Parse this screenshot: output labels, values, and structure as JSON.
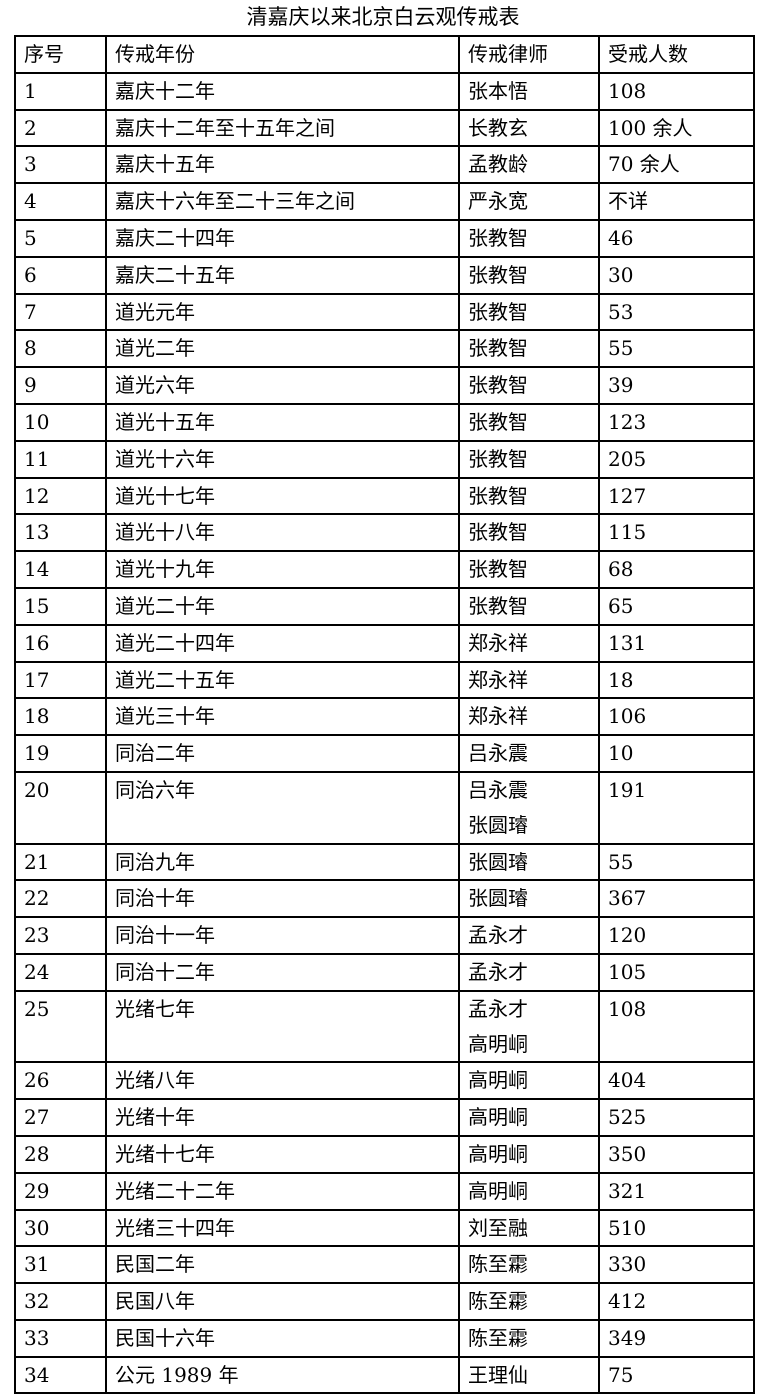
{
  "title": "清嘉庆以来北京白云观传戒表",
  "headers": [
    "序号",
    "传戒年份",
    "传戒律师",
    "受戒人数"
  ],
  "rows": [
    {
      "no": "1",
      "year": "嘉庆十二年",
      "masters": [
        "张本悟"
      ],
      "count": "108"
    },
    {
      "no": "2",
      "year": "嘉庆十二年至十五年之间",
      "masters": [
        "长教玄"
      ],
      "count": "100 余人"
    },
    {
      "no": "3",
      "year": "嘉庆十五年",
      "masters": [
        "孟教龄"
      ],
      "count": "70 余人"
    },
    {
      "no": "4",
      "year": "嘉庆十六年至二十三年之间",
      "masters": [
        "严永宽"
      ],
      "count": "不详"
    },
    {
      "no": "5",
      "year": "嘉庆二十四年",
      "masters": [
        "张教智"
      ],
      "count": "46"
    },
    {
      "no": "6",
      "year": "嘉庆二十五年",
      "masters": [
        "张教智"
      ],
      "count": "30"
    },
    {
      "no": "7",
      "year": "道光元年",
      "masters": [
        "张教智"
      ],
      "count": "53"
    },
    {
      "no": "8",
      "year": "道光二年",
      "masters": [
        "张教智"
      ],
      "count": "55"
    },
    {
      "no": "9",
      "year": "道光六年",
      "masters": [
        "张教智"
      ],
      "count": "39"
    },
    {
      "no": "10",
      "year": "道光十五年",
      "masters": [
        "张教智"
      ],
      "count": "123"
    },
    {
      "no": "11",
      "year": "道光十六年",
      "masters": [
        "张教智"
      ],
      "count": "205"
    },
    {
      "no": "12",
      "year": "道光十七年",
      "masters": [
        "张教智"
      ],
      "count": "127"
    },
    {
      "no": "13",
      "year": "道光十八年",
      "masters": [
        "张教智"
      ],
      "count": "115"
    },
    {
      "no": "14",
      "year": "道光十九年",
      "masters": [
        "张教智"
      ],
      "count": "68"
    },
    {
      "no": "15",
      "year": "道光二十年",
      "masters": [
        "张教智"
      ],
      "count": "65"
    },
    {
      "no": "16",
      "year": "道光二十四年",
      "masters": [
        "郑永祥"
      ],
      "count": "131"
    },
    {
      "no": "17",
      "year": "道光二十五年",
      "masters": [
        "郑永祥"
      ],
      "count": "18"
    },
    {
      "no": "18",
      "year": "道光三十年",
      "masters": [
        "郑永祥"
      ],
      "count": "106"
    },
    {
      "no": "19",
      "year": "同治二年",
      "masters": [
        "吕永震"
      ],
      "count": "10"
    },
    {
      "no": "20",
      "year": "同治六年",
      "masters": [
        "吕永震",
        "张圆璿"
      ],
      "count": "191"
    },
    {
      "no": "21",
      "year": "同治九年",
      "masters": [
        "张圆璿"
      ],
      "count": "55"
    },
    {
      "no": "22",
      "year": "同治十年",
      "masters": [
        "张圆璿"
      ],
      "count": "367"
    },
    {
      "no": "23",
      "year": "同治十一年",
      "masters": [
        "孟永才"
      ],
      "count": "120"
    },
    {
      "no": "24",
      "year": "同治十二年",
      "masters": [
        "孟永才"
      ],
      "count": "105"
    },
    {
      "no": "25",
      "year": "光绪七年",
      "masters": [
        "孟永才",
        "高明峒"
      ],
      "count": "108"
    },
    {
      "no": "26",
      "year": "光绪八年",
      "masters": [
        "高明峒"
      ],
      "count": "404"
    },
    {
      "no": "27",
      "year": "光绪十年",
      "masters": [
        "高明峒"
      ],
      "count": "525"
    },
    {
      "no": "28",
      "year": "光绪十七年",
      "masters": [
        "高明峒"
      ],
      "count": "350"
    },
    {
      "no": "29",
      "year": "光绪二十二年",
      "masters": [
        "高明峒"
      ],
      "count": "321"
    },
    {
      "no": "30",
      "year": "光绪三十四年",
      "masters": [
        "刘至融"
      ],
      "count": "510"
    },
    {
      "no": "31",
      "year": "民国二年",
      "masters": [
        "陈至霦"
      ],
      "count": "330"
    },
    {
      "no": "32",
      "year": "民国八年",
      "masters": [
        "陈至霦"
      ],
      "count": "412"
    },
    {
      "no": "33",
      "year": "民国十六年",
      "masters": [
        "陈至霦"
      ],
      "count": "349"
    },
    {
      "no": "34",
      "year": "公元 1989 年",
      "masters": [
        "王理仙"
      ],
      "count": "75"
    }
  ]
}
